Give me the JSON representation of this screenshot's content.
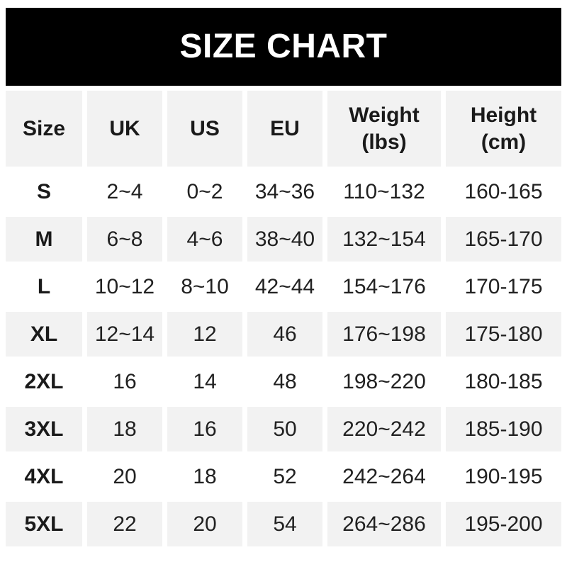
{
  "banner": {
    "title": "SIZE CHART"
  },
  "colors": {
    "banner_bg": "#000000",
    "banner_text": "#ffffff",
    "stripe": "#f2f2f2",
    "cell_text": "#212121",
    "header_text": "#1a1a1a"
  },
  "table": {
    "header_lines": [
      [
        "Size"
      ],
      [
        "UK"
      ],
      [
        "US"
      ],
      [
        "EU"
      ],
      [
        "Weight",
        "(lbs)"
      ],
      [
        "Height",
        "(cm)"
      ]
    ]
  },
  "chart_data": {
    "type": "table",
    "title": "SIZE CHART",
    "columns": [
      "Size",
      "UK",
      "US",
      "EU",
      "Weight (lbs)",
      "Height (cm)"
    ],
    "rows": [
      [
        "S",
        "2~4",
        "0~2",
        "34~36",
        "110~132",
        "160-165"
      ],
      [
        "M",
        "6~8",
        "4~6",
        "38~40",
        "132~154",
        "165-170"
      ],
      [
        "L",
        "10~12",
        "8~10",
        "42~44",
        "154~176",
        "170-175"
      ],
      [
        "XL",
        "12~14",
        "12",
        "46",
        "176~198",
        "175-180"
      ],
      [
        "2XL",
        "16",
        "14",
        "48",
        "198~220",
        "180-185"
      ],
      [
        "3XL",
        "18",
        "16",
        "50",
        "220~242",
        "185-190"
      ],
      [
        "4XL",
        "20",
        "18",
        "52",
        "242~264",
        "190-195"
      ],
      [
        "5XL",
        "22",
        "20",
        "54",
        "264~286",
        "195-200"
      ]
    ],
    "layout": {
      "stripe_pattern": "header and even data rows shaded, odd data rows white",
      "cell_alignment": "center"
    }
  }
}
